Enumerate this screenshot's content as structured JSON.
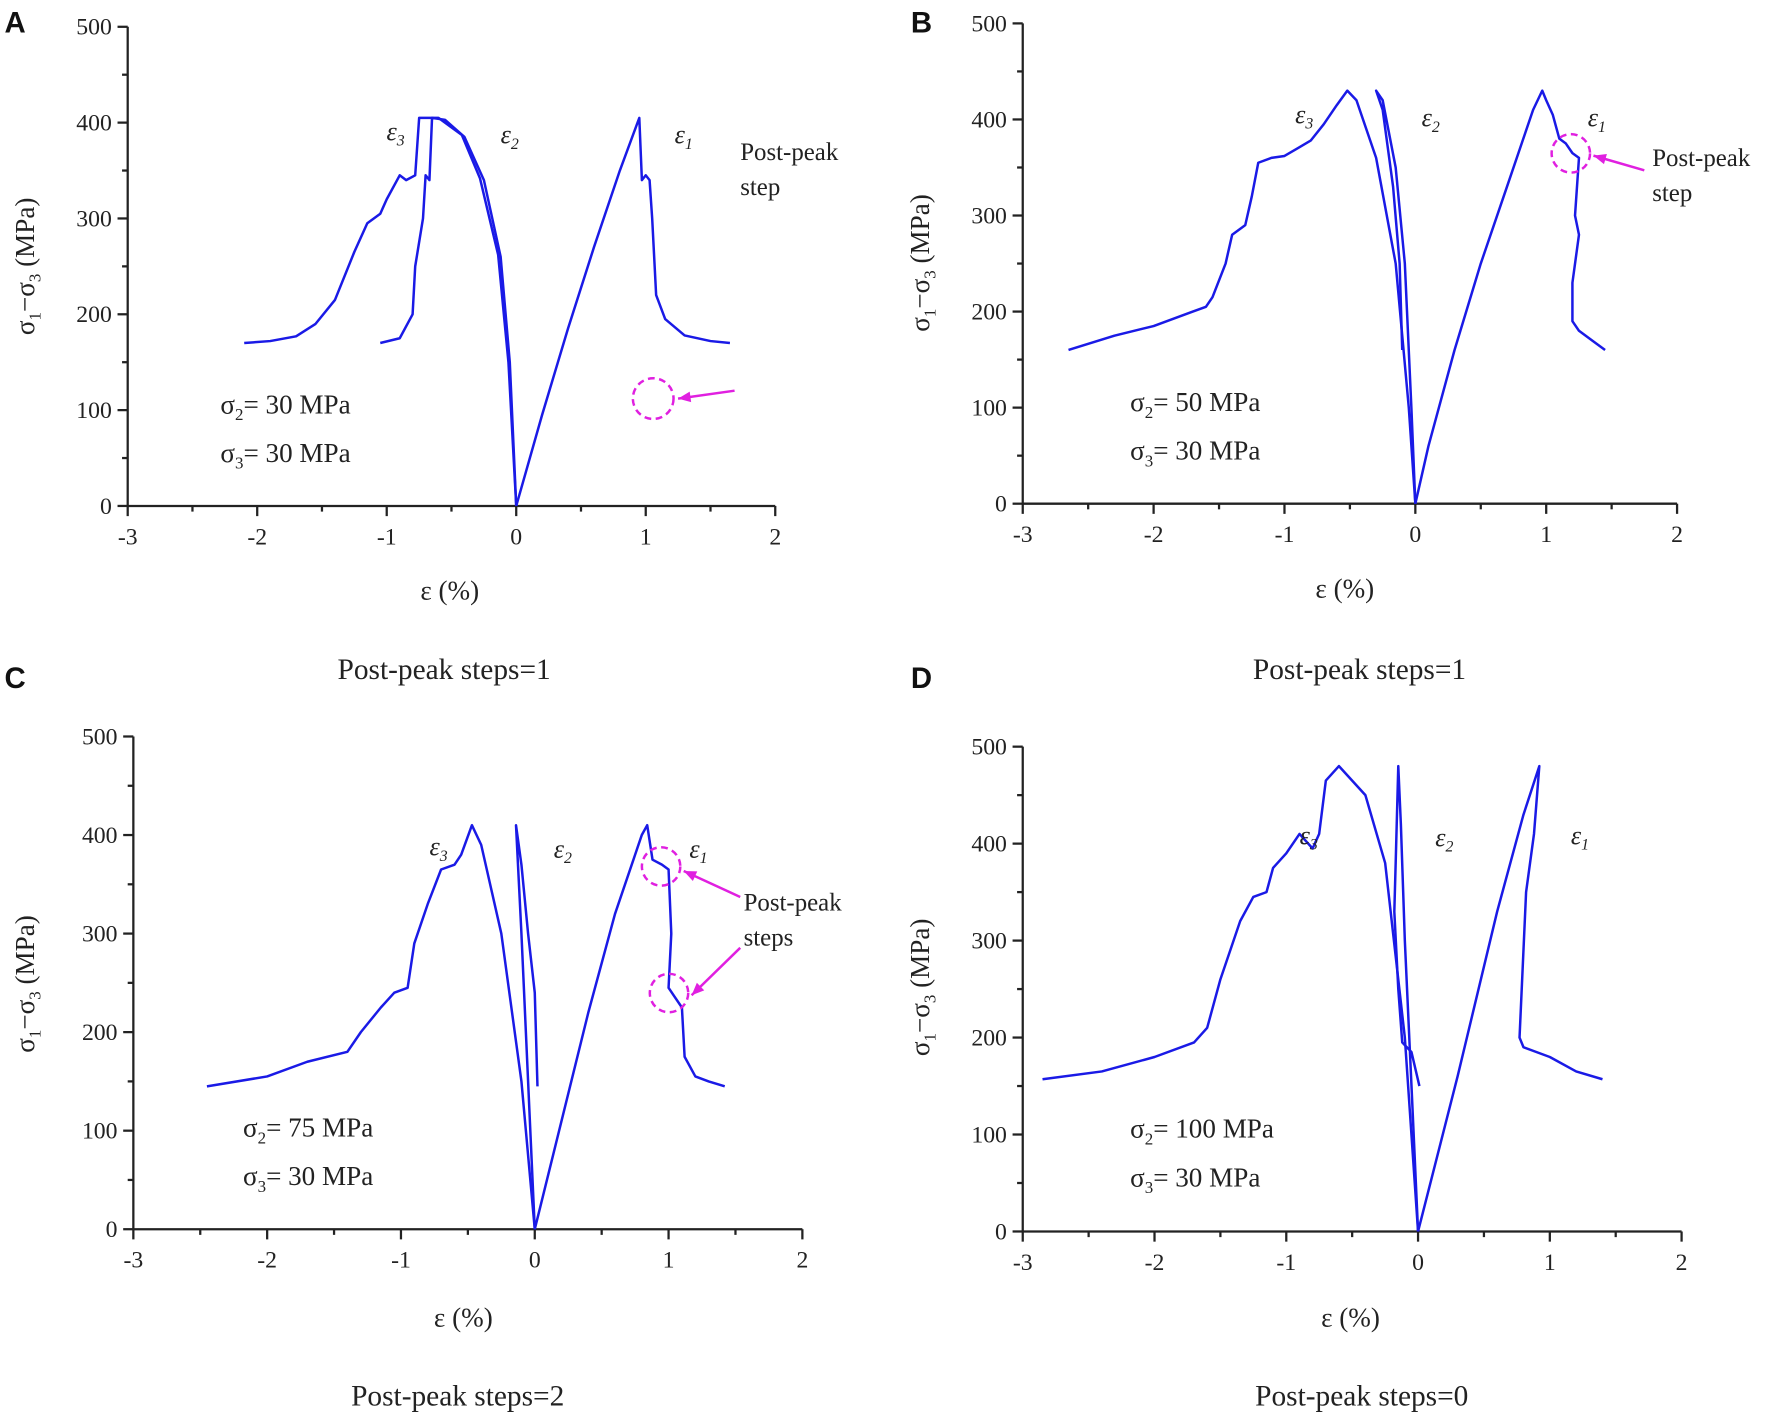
{
  "chart_data": [
    {
      "type": "line",
      "panel_label": "A",
      "xlabel": "ε (%)",
      "ylabel": {
        "main": "σ",
        "sub1": "1",
        "mid": "−σ",
        "sub2": "3",
        "unit": " (MPa)"
      },
      "xlim": [
        -3,
        2
      ],
      "ylim": [
        0,
        500
      ],
      "xticks": [
        "-3",
        "-2",
        "-1",
        "0",
        "1",
        "2"
      ],
      "yticks": [
        "0",
        "100",
        "200",
        "300",
        "400",
        "500"
      ],
      "conditions": [
        {
          "sym": "σ",
          "sub": "2",
          "rest": "= 30 MPa"
        },
        {
          "sym": "σ",
          "sub": "3",
          "rest": "= 30 MPa"
        }
      ],
      "caption": "Post-peak steps=1",
      "annotation": [
        "Post-peak",
        "step"
      ],
      "series": [
        {
          "name": "ε1",
          "x": [
            0,
            0.2,
            0.4,
            0.6,
            0.8,
            0.95,
            0.97,
            1.0,
            1.03,
            1.05,
            1.08,
            1.15,
            1.3,
            1.5,
            1.65
          ],
          "y": [
            0,
            95,
            185,
            270,
            350,
            405,
            340,
            345,
            340,
            300,
            220,
            195,
            178,
            172,
            170
          ]
        },
        {
          "name": "ε2",
          "x": [
            0,
            -0.05,
            -0.12,
            -0.25,
            -0.4,
            -0.55,
            -0.65,
            -0.67,
            -0.7,
            -0.72,
            -0.78,
            -0.8,
            -0.9,
            -1.05
          ],
          "y": [
            0,
            150,
            260,
            340,
            385,
            403,
            405,
            340,
            345,
            300,
            250,
            200,
            175,
            170
          ]
        },
        {
          "name": "ε3",
          "x": [
            0,
            -0.06,
            -0.14,
            -0.28,
            -0.42,
            -0.6,
            -0.75,
            -0.78,
            -0.85,
            -0.9,
            -1.0,
            -1.05,
            -1.15,
            -1.25,
            -1.4,
            -1.55,
            -1.7,
            -1.9,
            -2.1
          ],
          "y": [
            0,
            150,
            262,
            342,
            387,
            405,
            405,
            345,
            340,
            345,
            320,
            305,
            295,
            265,
            215,
            190,
            177,
            172,
            170
          ]
        }
      ]
    },
    {
      "type": "line",
      "panel_label": "B",
      "xlabel": "ε (%)",
      "ylabel": {
        "main": "σ",
        "sub1": "1",
        "mid": "−σ",
        "sub2": "3",
        "unit": " (MPa)"
      },
      "xlim": [
        -3,
        2
      ],
      "ylim": [
        0,
        500
      ],
      "xticks": [
        "-3",
        "-2",
        "-1",
        "0",
        "1",
        "2"
      ],
      "yticks": [
        "0",
        "100",
        "200",
        "300",
        "400",
        "500"
      ],
      "conditions": [
        {
          "sym": "σ",
          "sub": "2",
          "rest": "= 50 MPa"
        },
        {
          "sym": "σ",
          "sub": "3",
          "rest": "= 30 MPa"
        }
      ],
      "caption": "Post-peak steps=1",
      "annotation": [
        "Post-peak",
        "step"
      ],
      "series": [
        {
          "name": "ε1",
          "x": [
            0,
            0.1,
            0.3,
            0.5,
            0.7,
            0.9,
            0.97,
            1.0,
            1.05,
            1.1,
            1.15,
            1.2,
            1.25,
            1.22,
            1.25,
            1.2,
            1.2,
            1.25,
            1.35,
            1.45
          ],
          "y": [
            0,
            60,
            160,
            250,
            330,
            410,
            430,
            420,
            405,
            380,
            375,
            365,
            360,
            300,
            280,
            230,
            190,
            180,
            170,
            160
          ]
        },
        {
          "name": "ε2",
          "x": [
            0,
            -0.03,
            -0.08,
            -0.15,
            -0.25,
            -0.3,
            -0.25,
            -0.17,
            -0.12,
            -0.1
          ],
          "y": [
            0,
            100,
            250,
            350,
            420,
            430,
            410,
            330,
            250,
            160
          ]
        },
        {
          "name": "ε3",
          "x": [
            0,
            -0.05,
            -0.15,
            -0.3,
            -0.45,
            -0.52,
            -0.6,
            -0.7,
            -0.8,
            -0.9,
            -1.0,
            -1.1,
            -1.2,
            -1.25,
            -1.3,
            -1.4,
            -1.45,
            -1.55,
            -1.6,
            -1.7,
            -2.0,
            -2.3,
            -2.65
          ],
          "y": [
            0,
            100,
            250,
            360,
            420,
            430,
            415,
            395,
            378,
            370,
            362,
            360,
            355,
            320,
            290,
            280,
            250,
            215,
            205,
            200,
            185,
            175,
            160
          ]
        }
      ]
    },
    {
      "type": "line",
      "panel_label": "C",
      "xlabel": "ε (%)",
      "ylabel": {
        "main": "σ",
        "sub1": "1",
        "mid": "−σ",
        "sub2": "3",
        "unit": " (MPa)"
      },
      "xlim": [
        -3,
        2
      ],
      "ylim": [
        0,
        500
      ],
      "xticks": [
        "-3",
        "-2",
        "-1",
        "0",
        "1",
        "2"
      ],
      "yticks": [
        "0",
        "100",
        "200",
        "300",
        "400",
        "500"
      ],
      "conditions": [
        {
          "sym": "σ",
          "sub": "2",
          "rest": "= 75 MPa"
        },
        {
          "sym": "σ",
          "sub": "3",
          "rest": "= 30 MPa"
        }
      ],
      "caption": "Post-peak steps=2",
      "annotation": [
        "Post-peak",
        "steps"
      ],
      "series": [
        {
          "name": "ε1",
          "x": [
            0,
            0.2,
            0.4,
            0.6,
            0.8,
            0.84,
            0.88,
            0.95,
            1.0,
            1.02,
            1.0,
            1.05,
            1.1,
            1.12,
            1.2,
            1.3,
            1.42
          ],
          "y": [
            0,
            110,
            220,
            320,
            400,
            410,
            375,
            370,
            365,
            300,
            245,
            235,
            225,
            175,
            155,
            150,
            145
          ]
        },
        {
          "name": "ε2",
          "x": [
            0,
            -0.05,
            -0.1,
            -0.14,
            -0.1,
            -0.05,
            0,
            0.02
          ],
          "y": [
            0,
            150,
            300,
            410,
            370,
            300,
            240,
            145
          ]
        },
        {
          "name": "ε3",
          "x": [
            0,
            -0.1,
            -0.25,
            -0.4,
            -0.47,
            -0.55,
            -0.6,
            -0.7,
            -0.8,
            -0.9,
            -0.95,
            -1.05,
            -1.15,
            -1.3,
            -1.4,
            -1.7,
            -2.0,
            -2.45
          ],
          "y": [
            0,
            150,
            300,
            390,
            410,
            380,
            370,
            365,
            330,
            290,
            245,
            240,
            225,
            200,
            180,
            170,
            155,
            145
          ]
        }
      ]
    },
    {
      "type": "line",
      "panel_label": "D",
      "xlabel": "ε (%)",
      "ylabel": {
        "main": "σ",
        "sub1": "1",
        "mid": "−σ",
        "sub2": "3",
        "unit": " (MPa)"
      },
      "xlim": [
        -3,
        2
      ],
      "ylim": [
        0,
        500
      ],
      "xticks": [
        "-3",
        "-2",
        "-1",
        "0",
        "1",
        "2"
      ],
      "yticks": [
        "0",
        "100",
        "200",
        "300",
        "400",
        "500"
      ],
      "conditions": [
        {
          "sym": "σ",
          "sub": "2",
          "rest": "= 100 MPa"
        },
        {
          "sym": "σ",
          "sub": "3",
          "rest": "= 30 MPa"
        }
      ],
      "caption": "Post-peak steps=0",
      "annotation": null,
      "series": [
        {
          "name": "ε1",
          "x": [
            0,
            0.3,
            0.6,
            0.8,
            0.92,
            0.88,
            0.82,
            0.77,
            0.8,
            1.0,
            1.2,
            1.4
          ],
          "y": [
            0,
            160,
            330,
            430,
            480,
            410,
            350,
            200,
            190,
            180,
            165,
            157
          ]
        },
        {
          "name": "ε2",
          "x": [
            0,
            -0.05,
            -0.1,
            -0.13,
            -0.15,
            -0.17,
            -0.18,
            -0.15,
            -0.12,
            -0.05,
            0.01
          ],
          "y": [
            0,
            150,
            300,
            420,
            480,
            380,
            330,
            250,
            195,
            185,
            150
          ]
        },
        {
          "name": "ε3",
          "x": [
            0,
            -0.1,
            -0.25,
            -0.4,
            -0.6,
            -0.7,
            -0.75,
            -0.8,
            -0.9,
            -1.0,
            -1.1,
            -1.15,
            -1.25,
            -1.35,
            -1.5,
            -1.6,
            -1.7,
            -2.0,
            -2.4,
            -2.85
          ],
          "y": [
            0,
            200,
            380,
            450,
            480,
            465,
            410,
            395,
            410,
            390,
            375,
            350,
            345,
            320,
            260,
            210,
            195,
            180,
            165,
            157
          ]
        }
      ]
    }
  ],
  "colors": {
    "curve": "#1a1ae6",
    "annotation": "#e020e0"
  }
}
